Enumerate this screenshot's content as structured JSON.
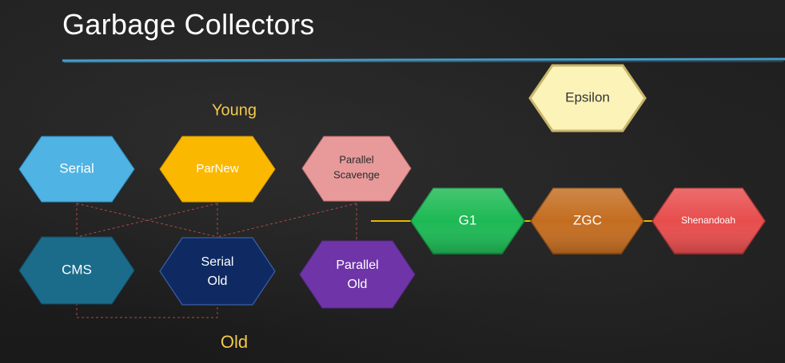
{
  "slide": {
    "title": "Garbage Collectors"
  },
  "labels": {
    "young": "Young",
    "old": "Old"
  },
  "collectors": {
    "serial": {
      "name": "Serial",
      "color": "#4fb3e3"
    },
    "parnew": {
      "name": "ParNew",
      "color": "#fbb800"
    },
    "parallel_scavenge": {
      "line1": "Parallel",
      "line2": "Scavenge",
      "color": "#e89a9a"
    },
    "cms": {
      "name": "CMS",
      "color": "#1b6b8a"
    },
    "serial_old": {
      "line1": "Serial",
      "line2": "Old",
      "color": "#0f2a63"
    },
    "parallel_old": {
      "line1": "Parallel",
      "line2": "Old",
      "color": "#6f34a8"
    },
    "epsilon": {
      "name": "Epsilon",
      "color": "#fbf3b8"
    },
    "g1": {
      "name": "G1",
      "color": "#1db954"
    },
    "zgc": {
      "name": "ZGC",
      "color": "#c46d20"
    },
    "shenandoah": {
      "name": "Shenandoah",
      "color": "#e84d4d"
    }
  },
  "colors": {
    "accent_line": "#4aa8d8",
    "connector_dashed": "#b04a4a",
    "connector_solid": "#e6b800",
    "label_yellow": "#f2c94c"
  }
}
